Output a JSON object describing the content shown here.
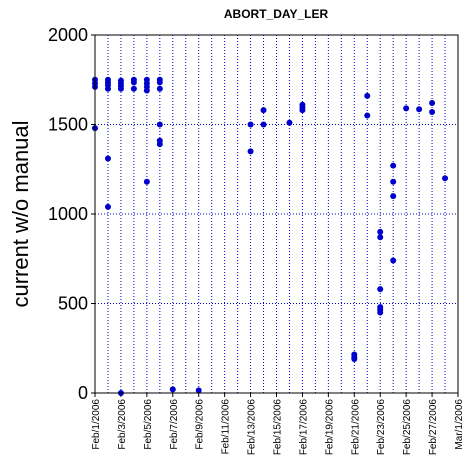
{
  "chart_data": {
    "type": "scatter",
    "title": "ABORT_DAY_LER",
    "xlabel": "",
    "ylabel": "current w/o manual",
    "x_axis": {
      "type": "date",
      "range": [
        "2006-02-01",
        "2006-03-01"
      ],
      "tick_labels": [
        "Feb/1/2006",
        "Feb/3/2006",
        "Feb/5/2006",
        "Feb/7/2006",
        "Feb/9/2006",
        "Feb/11/2006",
        "Feb/13/2006",
        "Feb/15/2006",
        "Feb/17/2006",
        "Feb/19/2006",
        "Feb/21/2006",
        "Feb/23/2006",
        "Feb/25/2006",
        "Feb/27/2006",
        "Mar/1/2006"
      ],
      "tick_dates": [
        "2006-02-01",
        "2006-02-03",
        "2006-02-05",
        "2006-02-07",
        "2006-02-09",
        "2006-02-11",
        "2006-02-13",
        "2006-02-15",
        "2006-02-17",
        "2006-02-19",
        "2006-02-21",
        "2006-02-23",
        "2006-02-25",
        "2006-02-27",
        "2006-03-01"
      ],
      "vertical_grid": "dotted, one line per day"
    },
    "y_axis": {
      "range": [
        0,
        2000
      ],
      "ticks": [
        0,
        500,
        1000,
        1500,
        2000
      ],
      "horizontal_grid": "dotted at 500, 1000, 1500"
    },
    "marker_color": "#0000CC",
    "series": [
      {
        "points": [
          {
            "x": "2006-02-01",
            "y": 1750
          },
          {
            "x": "2006-02-01",
            "y": 1730
          },
          {
            "x": "2006-02-01",
            "y": 1710
          },
          {
            "x": "2006-02-01",
            "y": 1480
          },
          {
            "x": "2006-02-02",
            "y": 1750
          },
          {
            "x": "2006-02-02",
            "y": 1735
          },
          {
            "x": "2006-02-02",
            "y": 1720
          },
          {
            "x": "2006-02-02",
            "y": 1700
          },
          {
            "x": "2006-02-02",
            "y": 1310
          },
          {
            "x": "2006-02-02",
            "y": 1040
          },
          {
            "x": "2006-02-03",
            "y": 1745
          },
          {
            "x": "2006-02-03",
            "y": 1730
          },
          {
            "x": "2006-02-03",
            "y": 1715
          },
          {
            "x": "2006-02-03",
            "y": 1700
          },
          {
            "x": "2006-02-03",
            "y": 0
          },
          {
            "x": "2006-02-04",
            "y": 1750
          },
          {
            "x": "2006-02-04",
            "y": 1735
          },
          {
            "x": "2006-02-04",
            "y": 1700
          },
          {
            "x": "2006-02-05",
            "y": 1750
          },
          {
            "x": "2006-02-05",
            "y": 1730
          },
          {
            "x": "2006-02-05",
            "y": 1710
          },
          {
            "x": "2006-02-05",
            "y": 1690
          },
          {
            "x": "2006-02-05",
            "y": 1180
          },
          {
            "x": "2006-02-06",
            "y": 1750
          },
          {
            "x": "2006-02-06",
            "y": 1735
          },
          {
            "x": "2006-02-06",
            "y": 1700
          },
          {
            "x": "2006-02-06",
            "y": 1500
          },
          {
            "x": "2006-02-06",
            "y": 1410
          },
          {
            "x": "2006-02-06",
            "y": 1390
          },
          {
            "x": "2006-02-07",
            "y": 20
          },
          {
            "x": "2006-02-09",
            "y": 15
          },
          {
            "x": "2006-02-13",
            "y": 1500
          },
          {
            "x": "2006-02-13",
            "y": 1350
          },
          {
            "x": "2006-02-14",
            "y": 1580
          },
          {
            "x": "2006-02-14",
            "y": 1500
          },
          {
            "x": "2006-02-16",
            "y": 1510
          },
          {
            "x": "2006-02-17",
            "y": 1610
          },
          {
            "x": "2006-02-17",
            "y": 1595
          },
          {
            "x": "2006-02-17",
            "y": 1580
          },
          {
            "x": "2006-02-21",
            "y": 215
          },
          {
            "x": "2006-02-21",
            "y": 200
          },
          {
            "x": "2006-02-21",
            "y": 190
          },
          {
            "x": "2006-02-22",
            "y": 1660
          },
          {
            "x": "2006-02-22",
            "y": 1550
          },
          {
            "x": "2006-02-23",
            "y": 900
          },
          {
            "x": "2006-02-23",
            "y": 870
          },
          {
            "x": "2006-02-23",
            "y": 580
          },
          {
            "x": "2006-02-23",
            "y": 480
          },
          {
            "x": "2006-02-23",
            "y": 465
          },
          {
            "x": "2006-02-23",
            "y": 450
          },
          {
            "x": "2006-02-24",
            "y": 1270
          },
          {
            "x": "2006-02-24",
            "y": 1180
          },
          {
            "x": "2006-02-24",
            "y": 1100
          },
          {
            "x": "2006-02-24",
            "y": 740
          },
          {
            "x": "2006-02-25",
            "y": 1590
          },
          {
            "x": "2006-02-26",
            "y": 1585
          },
          {
            "x": "2006-02-27",
            "y": 1620
          },
          {
            "x": "2006-02-27",
            "y": 1570
          },
          {
            "x": "2006-02-28",
            "y": 1200
          }
        ]
      }
    ]
  }
}
